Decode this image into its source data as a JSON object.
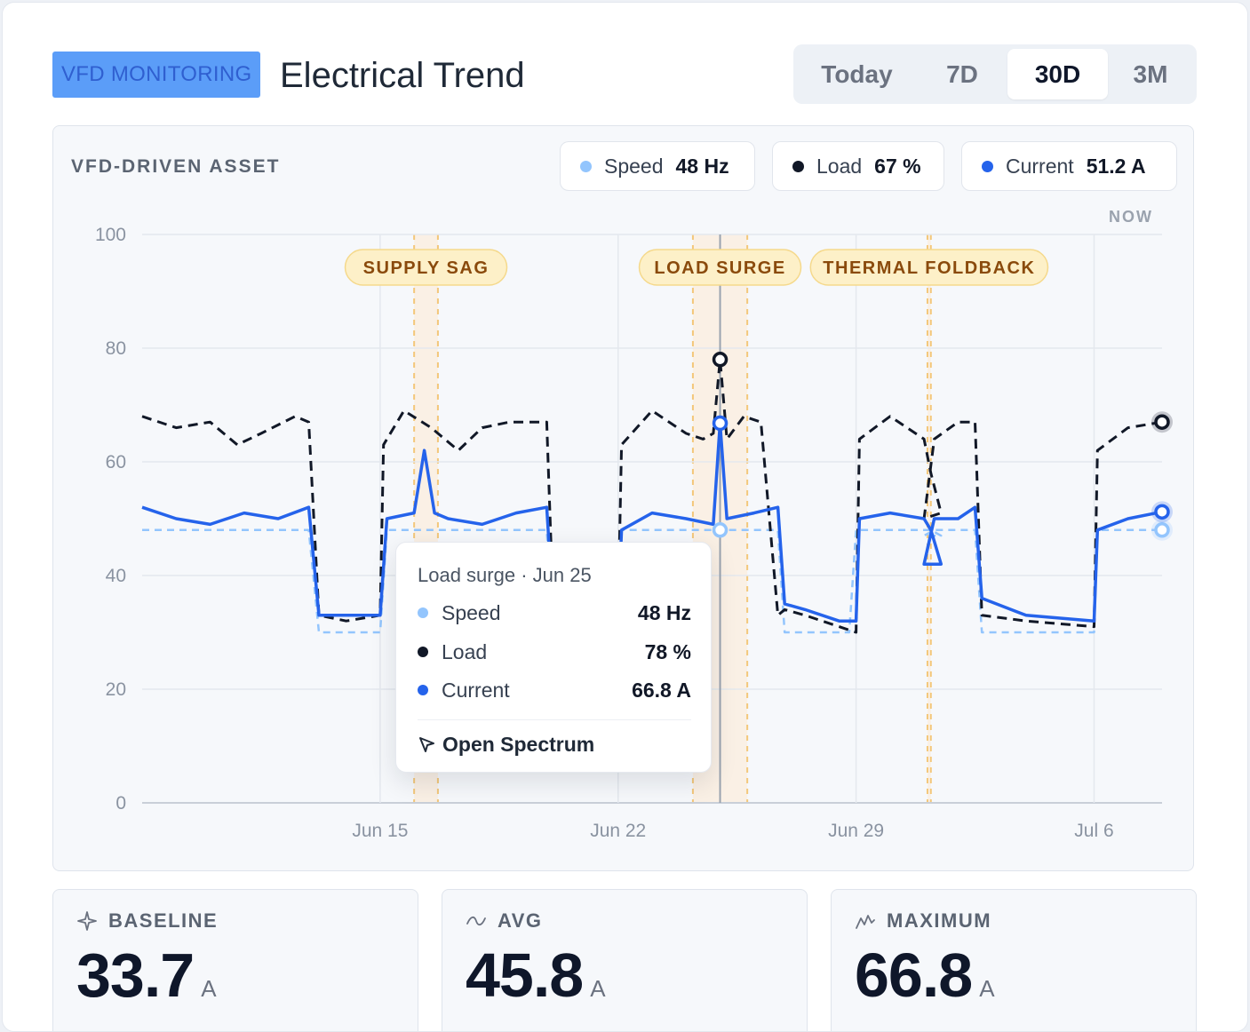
{
  "header": {
    "badge": "VFD MONITORING",
    "title": "Electrical Trend",
    "ranges": [
      "Today",
      "7D",
      "30D",
      "3M"
    ],
    "active_range": "30D"
  },
  "panel": {
    "asset_label": "VFD-DRIVEN ASSET",
    "pills": [
      {
        "name": "Speed",
        "value": "48 Hz",
        "color": "#93c5fd"
      },
      {
        "name": "Load",
        "value": "67 %",
        "color": "#111827"
      },
      {
        "name": "Current",
        "value": "51.2 A",
        "color": "#2563eb"
      }
    ],
    "now_label": "NOW"
  },
  "tooltip": {
    "title": "Load surge · Jun 25",
    "rows": [
      {
        "name": "Speed",
        "value": "48 Hz",
        "color": "#93c5fd"
      },
      {
        "name": "Load",
        "value": "78 %",
        "color": "#111827"
      },
      {
        "name": "Current",
        "value": "66.8 A",
        "color": "#2563eb"
      }
    ],
    "action": "Open Spectrum"
  },
  "stats": [
    {
      "label": "BASELINE",
      "value": "33.7",
      "unit": "A",
      "icon": "sparkle-icon"
    },
    {
      "label": "AVG",
      "value": "45.8",
      "unit": "A",
      "icon": "wave-icon"
    },
    {
      "label": "MAXIMUM",
      "value": "66.8",
      "unit": "A",
      "icon": "peak-icon"
    }
  ],
  "chart_data": {
    "type": "line",
    "y_ticks": [
      0,
      20,
      40,
      60,
      80,
      100
    ],
    "ylim": [
      0,
      100
    ],
    "x_range": [
      "Jun 8",
      "Jul 8"
    ],
    "x_ticks": [
      "Jun 15",
      "Jun 22",
      "Jun 29",
      "Jul 6"
    ],
    "grid": true,
    "series": [
      {
        "name": "Speed",
        "color": "#93c5fd",
        "style": "dashed",
        "x": [
          "Jun 8",
          "Jun 12.9",
          "Jun 13.2",
          "Jun 15",
          "Jun 15.2",
          "Jun 19.9",
          "Jun 20.1",
          "Jun 22",
          "Jun 22.1",
          "Jun 24.8",
          "Jun 25",
          "Jun 25.2",
          "Jun 26.7",
          "Jun 26.9",
          "Jun 28.8",
          "Jun 29",
          "Jun 31.2",
          "Jun 31.5",
          "Jul 1",
          "Jul 1.3",
          "Jul 2.5",
          "Jul 2.7",
          "Jul 6",
          "Jul 6.1",
          "Jul 8"
        ],
        "values": [
          48,
          48,
          30,
          30,
          48,
          48,
          30,
          30,
          48,
          48,
          48,
          48,
          48,
          30,
          30,
          48,
          48,
          47,
          47,
          48,
          48,
          30,
          30,
          48,
          48
        ]
      },
      {
        "name": "Load",
        "color": "#111827",
        "style": "dashed",
        "x": [
          "Jun 8",
          "Jun 9",
          "Jun 10",
          "Jun 10.8",
          "Jun 11.5",
          "Jun 12.5",
          "Jun 12.9",
          "Jun 13.2",
          "Jun 14",
          "Jun 15",
          "Jun 15.1",
          "Jun 15.7",
          "Jun 16.5",
          "Jun 17.3",
          "Jun 18",
          "Jun 18.8",
          "Jun 19.9",
          "Jun 20.1",
          "Jun 21",
          "Jun 22",
          "Jun 22.1",
          "Jun 23",
          "Jun 24",
          "Jun 24.5",
          "Jun 24.8",
          "Jun 25",
          "Jun 25.2",
          "Jun 25.7",
          "Jun 26.2",
          "Jun 26.7",
          "Jun 26.9",
          "Jun 27.5",
          "Jun 28.5",
          "Jun 29",
          "Jun 29.1",
          "Jun 30",
          "Jun 31",
          "Jun 31.2",
          "Jun 31.5",
          "Jul 1",
          "Jul 1.3",
          "Jul 2",
          "Jul 2.5",
          "Jul 2.7",
          "Jul 4",
          "Jul 6",
          "Jul 6.1",
          "Jul 7",
          "Jul 8"
        ],
        "values": [
          68,
          66,
          67,
          63,
          65,
          68,
          67,
          33,
          32,
          33,
          63,
          69,
          66,
          62,
          66,
          67,
          67,
          33,
          32,
          33,
          63,
          69,
          65,
          64,
          65,
          78,
          64,
          68,
          67,
          33,
          34,
          33,
          31,
          30,
          64,
          68,
          64,
          58,
          51,
          50,
          64,
          67,
          67,
          33,
          32,
          31,
          62,
          66,
          67
        ]
      },
      {
        "name": "Current",
        "color": "#2563eb",
        "style": "solid",
        "x": [
          "Jun 8",
          "Jun 9",
          "Jun 10",
          "Jun 11",
          "Jun 12",
          "Jun 12.9",
          "Jun 13.2",
          "Jun 14",
          "Jun 15",
          "Jun 15.2",
          "Jun 16",
          "Jun 16.3",
          "Jun 16.6",
          "Jun 17",
          "Jun 18",
          "Jun 19",
          "Jun 19.9",
          "Jun 20.1",
          "Jun 21",
          "Jun 22",
          "Jun 22.1",
          "Jun 23",
          "Jun 24",
          "Jun 24.8",
          "Jun 25",
          "Jun 25.2",
          "Jun 26",
          "Jun 26.7",
          "Jun 26.9",
          "Jun 27.5",
          "Jun 28.5",
          "Jun 29",
          "Jun 29.1",
          "Jun 30",
          "Jun 31",
          "Jun 31.2",
          "Jun 31.5",
          "Jul 1",
          "Jul 1.3",
          "Jul 2",
          "Jul 2.5",
          "Jul 2.7",
          "Jul 4",
          "Jul 6",
          "Jul 6.1",
          "Jul 7",
          "Jul 8"
        ],
        "values": [
          52,
          50,
          49,
          51,
          50,
          52,
          33,
          33,
          33,
          50,
          51,
          62,
          51,
          50,
          49,
          51,
          52,
          33,
          32,
          33,
          48,
          51,
          50,
          49,
          66.8,
          50,
          51,
          52,
          35,
          34,
          32,
          32,
          50,
          51,
          50,
          48,
          42,
          42,
          50,
          50,
          52,
          36,
          33,
          32,
          48,
          50,
          51.2
        ]
      }
    ],
    "annotations": [
      {
        "label": "SUPPLY SAG",
        "x_start": "Jun 16",
        "x_end": "Jun 16.7"
      },
      {
        "label": "LOAD SURGE",
        "x_start": "Jun 24.2",
        "x_end": "Jun 25.8"
      },
      {
        "label": "THERMAL FOLDBACK",
        "x_start": "Jun 31.1",
        "x_end": "Jul 1.2"
      }
    ],
    "cursor_x": "Jun 25"
  }
}
